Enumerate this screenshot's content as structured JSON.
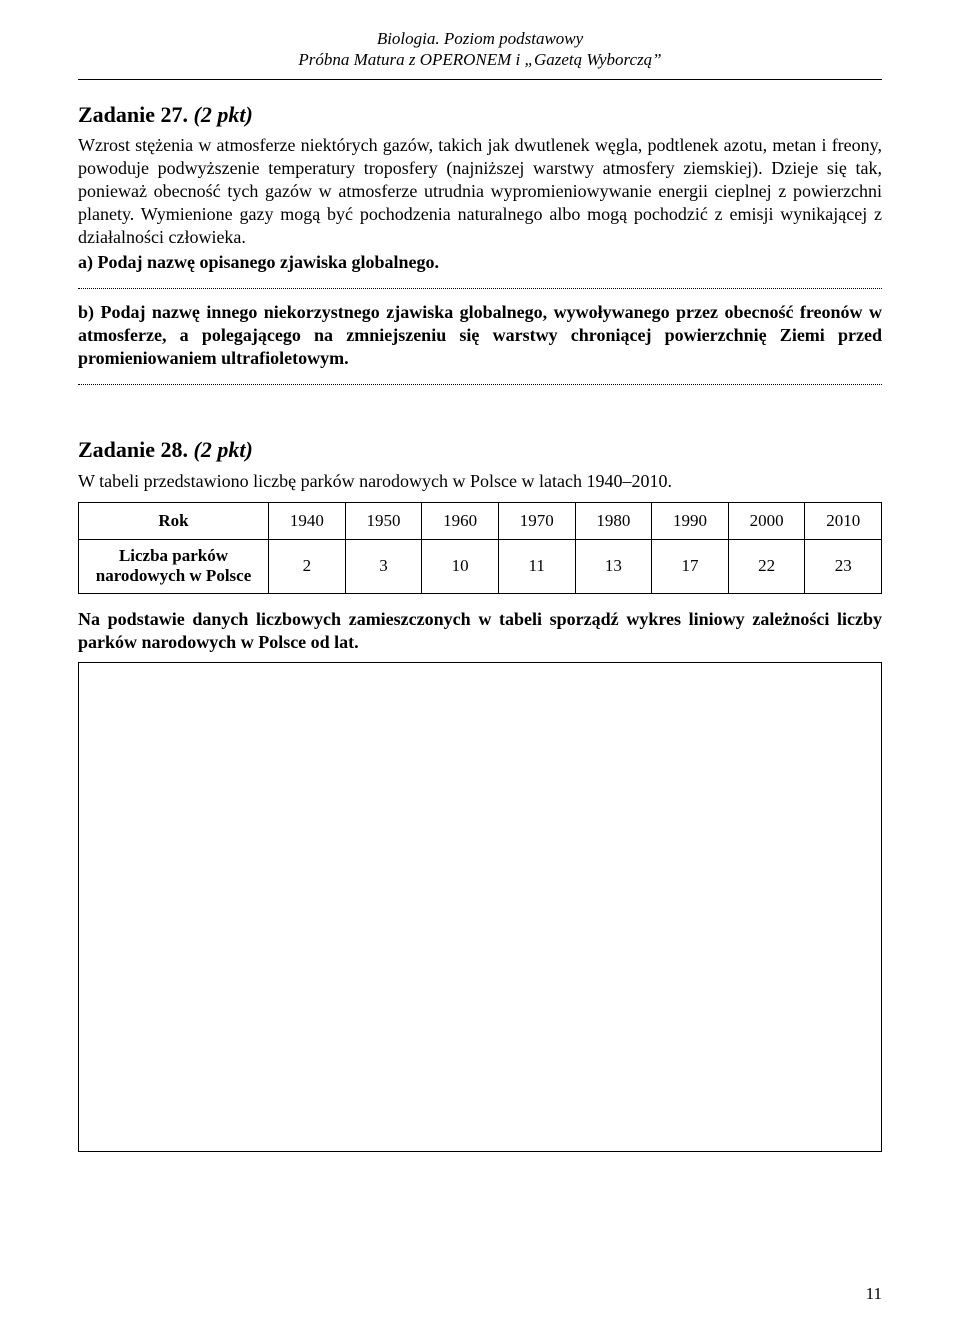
{
  "header": {
    "line1": "Biologia. Poziom podstawowy",
    "line2": "Próbna Matura z OPERONEM i „Gazetą Wyborczą”"
  },
  "task27": {
    "heading_label": "Zadanie 27.",
    "heading_pts": "(2 pkt)",
    "paragraph": "Wzrost stężenia w atmosferze niektórych gazów, takich jak dwutlenek węgla, podtlenek azotu, metan i freony, powoduje podwyższenie temperatury troposfery (najniższej warstwy atmosfery ziemskiej). Dzieje się tak, ponieważ obecność tych gazów w atmosferze utrudnia wypromieniowywanie energii cieplnej z powierzchni planety. Wymienione gazy mogą być pochodzenia naturalnego albo mogą pochodzić z emisji wynikającej z działalności człowieka.",
    "prompt_a": "a) Podaj nazwę opisanego zjawiska globalnego.",
    "prompt_b": "b) Podaj nazwę innego niekorzystnego zjawiska globalnego, wywoływanego przez obecność freonów w atmosferze, a polegającego na zmniejszeniu się warstwy chroniącej powierzchnię Ziemi przed promieniowaniem ultrafioletowym."
  },
  "task28": {
    "heading_label": "Zadanie 28.",
    "heading_pts": "(2 pkt)",
    "intro": "W tabeli przedstawiono liczbę parków narodowych w Polsce w latach 1940–2010.",
    "table": {
      "row1_label": "Rok",
      "row2_label": "Liczba parków narodowych w Polsce",
      "years": [
        "1940",
        "1950",
        "1960",
        "1970",
        "1980",
        "1990",
        "2000",
        "2010"
      ],
      "counts": [
        "2",
        "3",
        "10",
        "11",
        "13",
        "17",
        "22",
        "23"
      ]
    },
    "instruction": "Na podstawie danych liczbowych zamieszczonych w tabeli sporządź wykres liniowy zależności liczby parków narodowych w Polsce od lat."
  },
  "page_number": "11"
}
